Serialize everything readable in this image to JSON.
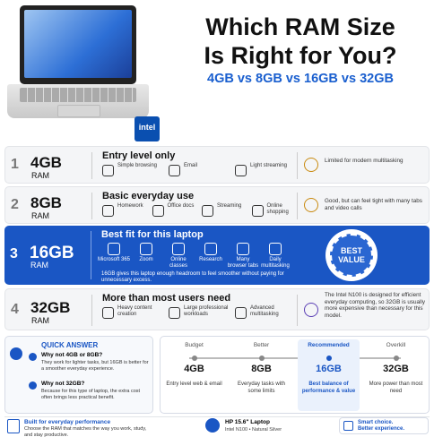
{
  "header": {
    "title_line1": "Which RAM Size",
    "title_line2": "Is Right for You?",
    "subtitle": "4GB vs 8GB vs 16GB vs 32GB",
    "badge": "intel"
  },
  "rows": [
    {
      "number": "1",
      "size": "4GB",
      "unit": "RAM",
      "heading": "Entry level only",
      "features": [
        "Simple browsing",
        "Email",
        "Light streaming"
      ],
      "note": "Limited for modern multitasking"
    },
    {
      "number": "2",
      "size": "8GB",
      "unit": "RAM",
      "heading": "Basic everyday use",
      "features": [
        "Homework",
        "Office docs",
        "Streaming",
        "Online shopping"
      ],
      "note": "Good, but can feel tight with many tabs and video calls"
    },
    {
      "number": "3",
      "size": "16GB",
      "unit": "RAM",
      "heading": "Best fit for this laptop",
      "features": [
        "Microsoft 365",
        "Zoom",
        "Online classes",
        "Research",
        "Many browser tabs",
        "Daily multitasking"
      ],
      "description": "16GB gives this laptop enough headroom to feel smoother without paying for unnecessary excess.",
      "badge": "BEST VALUE"
    },
    {
      "number": "4",
      "size": "32GB",
      "unit": "RAM",
      "heading": "More than most users need",
      "features": [
        "Heavy content creation",
        "Large professional workloads",
        "Advanced multitasking"
      ],
      "note": "The Intel N100 is designed for efficient everyday computing, so 32GB is usually more expensive than necessary for this model."
    }
  ],
  "quick_answer": {
    "title": "QUICK ANSWER",
    "items": [
      {
        "question": "Why not 4GB or 8GB?",
        "answer": "They work for lighter tasks, but 16GB is better for a smoother everyday experience."
      },
      {
        "question": "Why not 32GB?",
        "answer": "Because for this type of laptop, the extra cost often brings less practical benefit."
      }
    ]
  },
  "scale": [
    {
      "label": "Budget",
      "size": "4GB",
      "description": "Entry level web & email"
    },
    {
      "label": "Better",
      "size": "8GB",
      "description": "Everyday tasks with some limits"
    },
    {
      "label": "Recommended",
      "size": "16GB",
      "description": "Best balance of performance & value"
    },
    {
      "label": "Overkill",
      "size": "32GB",
      "description": "More power than most need"
    }
  ],
  "footer": {
    "title": "Built for everyday performance",
    "text": "Choose the RAM that matches the way you work, study, and stay productive.",
    "product": "HP 15.6\" Laptop",
    "product_detail": "Intel N100 • Natural Silver",
    "tagline1": "Smart choice.",
    "tagline2": "Better experience."
  }
}
